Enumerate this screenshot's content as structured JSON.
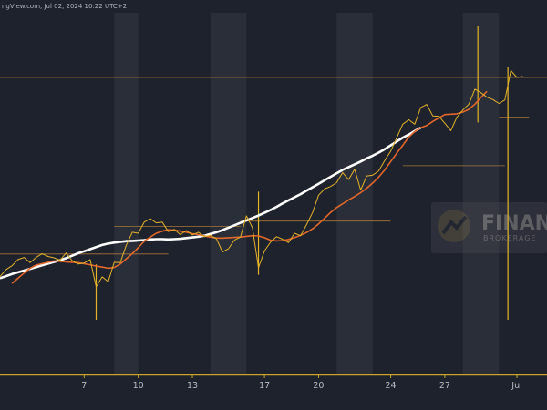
{
  "header": {
    "source_timestamp": "ngView.com, Jul 02, 2024 10:22 UTC+2"
  },
  "watermark": {
    "brand": "FINAN",
    "sub": "BROKERAGE"
  },
  "colors": {
    "background": "#1e222d",
    "shade": "#2a2e39",
    "price": "#e3b22a",
    "fast_ma": "#e2672a",
    "slow_ma": "#ffffff",
    "level": "#c88a3a",
    "axis": "#c9a227"
  },
  "chart_data": {
    "type": "line",
    "title": "",
    "xlabel": "",
    "ylabel": "",
    "x_ticks": [
      "7",
      "10",
      "13",
      "17",
      "20",
      "24",
      "27",
      "Jul"
    ],
    "x_tick_index": [
      14,
      23,
      32,
      44,
      53,
      65,
      74,
      86
    ],
    "xlim": [
      0,
      91
    ],
    "ylim": [
      0,
      100
    ],
    "grid": false,
    "legend": "none",
    "shaded_sessions": [
      [
        19,
        23
      ],
      [
        35,
        41
      ],
      [
        56,
        62
      ],
      [
        77,
        83
      ]
    ],
    "horizontal_levels": [
      {
        "y": 85,
        "x_from": 0,
        "x_to": 91
      },
      {
        "y": 59.5,
        "x_from": 67,
        "x_to": 84
      },
      {
        "y": 43.5,
        "x_from": 40,
        "x_to": 65
      },
      {
        "y": 42,
        "x_from": 19,
        "x_to": 40
      },
      {
        "y": 34,
        "x_from": 0,
        "x_to": 28
      },
      {
        "y": 73.5,
        "x_from": 83,
        "x_to": 88
      }
    ],
    "series": [
      {
        "role": "price",
        "values": [
          27.5,
          29.5,
          30.6,
          32.4,
          33.0,
          31.5,
          33.0,
          34.1,
          33.3,
          32.9,
          32.2,
          34.3,
          32.1,
          31.1,
          31.4,
          32.4,
          24.5,
          27.4,
          26.0,
          31.6,
          31.5,
          36.5,
          40.3,
          40.0,
          43.2,
          44.2,
          43.0,
          43.2,
          40.5,
          41.1,
          39.6,
          40.8,
          39.5,
          40.3,
          39.0,
          39.4,
          38.4,
          34.6,
          35.5,
          38.0,
          38.9,
          45.0,
          41.6,
          30.0,
          34.9,
          37.4,
          39.0,
          38.3,
          37.3,
          40.0,
          39.3,
          42.5,
          46.0,
          51.0,
          52.8,
          53.5,
          54.6,
          57.5,
          55.5,
          58.5,
          52.5,
          56.5,
          56.8,
          58.0,
          61.0,
          63.7,
          67.6,
          71.5,
          72.8,
          71.5,
          76.3,
          77.2,
          73.9,
          73.8,
          71.8,
          69.6,
          73.5,
          75.6,
          77.3,
          81.6,
          80.6,
          79.3,
          78.6,
          77.5,
          78.5,
          87.0,
          85.0,
          85.3
        ]
      },
      {
        "role": "fast_ma",
        "values": [
          25.5,
          27.0,
          28.5,
          29.9,
          30.8,
          31.2,
          31.6,
          32.0,
          31.9,
          31.7,
          31.6,
          31.5,
          31.2,
          30.9,
          30.5,
          30.2,
          29.9,
          30.1,
          31.1,
          32.6,
          34.1,
          35.8,
          37.7,
          38.9,
          40.0,
          40.6,
          41.0,
          40.9,
          40.6,
          40.3,
          39.9,
          39.6,
          39.2,
          38.9,
          38.6,
          38.6,
          38.7,
          38.8,
          38.9,
          39.1,
          39.3,
          39.2,
          38.7,
          38.0,
          37.8,
          37.9,
          38.2,
          38.7,
          39.4,
          40.2,
          41.3,
          42.7,
          44.3,
          46.0,
          47.4,
          48.5,
          49.6,
          50.6,
          51.7,
          53.0,
          54.5,
          56.2,
          58.3,
          60.7,
          63.1,
          65.4,
          67.8,
          69.4,
          70.5,
          71.1,
          72.3,
          73.3,
          74.3,
          74.4,
          74.5,
          75.0,
          75.8,
          77.3,
          79.2,
          81.0
        ],
        "x_offset": 2
      },
      {
        "role": "slow_ma",
        "values": [
          27.0,
          27.6,
          28.2,
          28.7,
          29.2,
          29.7,
          30.2,
          30.7,
          31.2,
          31.7,
          32.2,
          32.8,
          33.5,
          34.2,
          34.8,
          35.4,
          36.0,
          36.6,
          37.0,
          37.3,
          37.5,
          37.7,
          37.8,
          37.9,
          38.0,
          38.2,
          38.3,
          38.3,
          38.2,
          38.3,
          38.4,
          38.6,
          38.8,
          39.0,
          39.3,
          39.8,
          40.3,
          40.9,
          41.6,
          42.3,
          43.0,
          43.7,
          44.4,
          45.1,
          45.9,
          46.7,
          47.6,
          48.6,
          49.5,
          50.4,
          51.3,
          52.3,
          53.3,
          54.3,
          55.3,
          56.3,
          57.3,
          58.3,
          59.1,
          59.9,
          60.7,
          61.6,
          62.4,
          63.3,
          64.3,
          65.4,
          66.5,
          67.6,
          68.5,
          69.5,
          70.5
        ],
        "x_offset": 0
      }
    ],
    "spikes": [
      {
        "x": 16,
        "y_low": 15,
        "y_high": 31
      },
      {
        "x": 43,
        "y_low": 28,
        "y_high": 52
      },
      {
        "x": 79.5,
        "y_low": 72,
        "y_high": 100
      },
      {
        "x": 84.5,
        "y_low": 15,
        "y_high": 88
      }
    ]
  }
}
